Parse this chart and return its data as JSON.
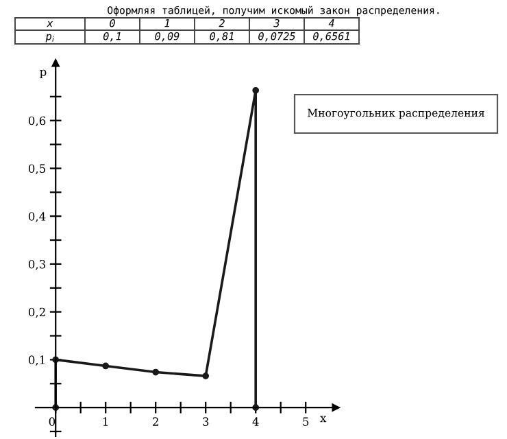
{
  "chart_data": {
    "type": "line",
    "title": "Оформляя таблицей, получим искомый закон распределения.",
    "xlabel": "x",
    "ylabel": "p",
    "x": [
      0,
      0,
      1,
      2,
      3,
      4,
      4
    ],
    "values": [
      0,
      0.1,
      0.087,
      0.074,
      0.066,
      0.663,
      0
    ],
    "color": "#1a1a1a",
    "marker": "circle",
    "line_style": "solid",
    "grid": false,
    "xlim": [
      -0.4,
      5.6
    ],
    "ylim": [
      -0.06,
      0.72
    ],
    "xticks": [
      0,
      {
        "value": 0.5,
        "label": null
      },
      1,
      {
        "value": 1.5,
        "label": null
      },
      2,
      {
        "value": 2.5,
        "label": null
      },
      3,
      {
        "value": 3.5,
        "label": null
      },
      4,
      {
        "value": 4.5,
        "label": null
      },
      5
    ],
    "yticks": [
      {
        "value": -0.05,
        "label": null
      },
      {
        "value": 0.05,
        "label": null
      },
      {
        "value": 0.1,
        "label": "0,1"
      },
      {
        "value": 0.15,
        "label": null
      },
      {
        "value": 0.2,
        "label": "0,2"
      },
      {
        "value": 0.25,
        "label": null
      },
      {
        "value": 0.3,
        "label": "0,3"
      },
      {
        "value": 0.35,
        "label": null
      },
      {
        "value": 0.4,
        "label": "0,4"
      },
      {
        "value": 0.45,
        "label": null
      },
      {
        "value": 0.5,
        "label": "0,5"
      },
      {
        "value": 0.55,
        "label": null
      },
      {
        "value": 0.6,
        "label": "0,6"
      },
      {
        "value": 0.65,
        "label": null
      }
    ],
    "annotations": [
      "Многоугольник распределения",
      "x",
      "0",
      "1",
      "2",
      "3",
      "4",
      "p$_{i}$",
      "0,1",
      "0,09",
      "0,81",
      "0,0725",
      "0,6561"
    ]
  }
}
